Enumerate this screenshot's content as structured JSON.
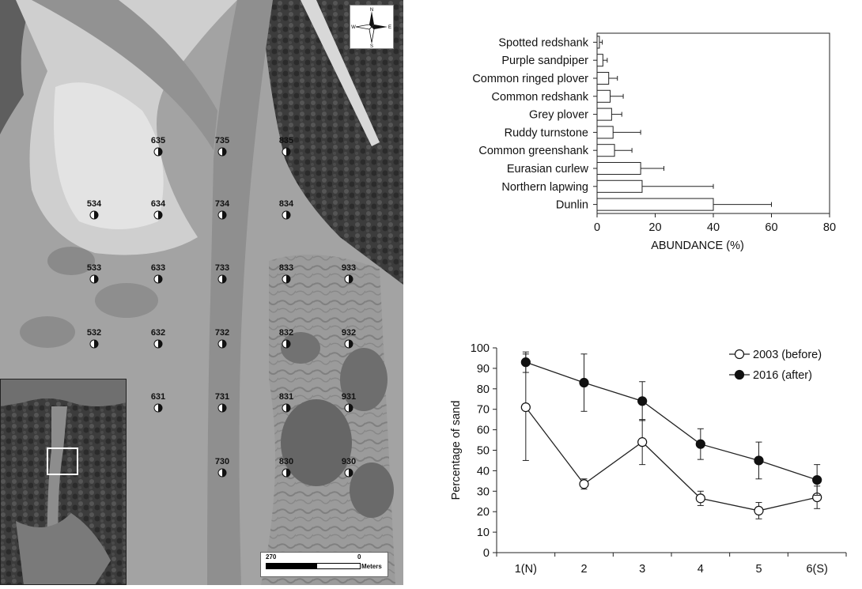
{
  "map": {
    "scale": {
      "left_label": "270",
      "right_label": "0",
      "unit": "Meters"
    },
    "compass": {
      "n": "N",
      "s": "S",
      "e": "E",
      "w": "W"
    },
    "stations": [
      {
        "id": "635",
        "col": 1,
        "row": 0
      },
      {
        "id": "735",
        "col": 2,
        "row": 0
      },
      {
        "id": "835",
        "col": 3,
        "row": 0
      },
      {
        "id": "534",
        "col": 0,
        "row": 1
      },
      {
        "id": "634",
        "col": 1,
        "row": 1
      },
      {
        "id": "734",
        "col": 2,
        "row": 1
      },
      {
        "id": "834",
        "col": 3,
        "row": 1
      },
      {
        "id": "533",
        "col": 0,
        "row": 2
      },
      {
        "id": "633",
        "col": 1,
        "row": 2
      },
      {
        "id": "733",
        "col": 2,
        "row": 2
      },
      {
        "id": "833",
        "col": 3,
        "row": 2
      },
      {
        "id": "933",
        "col": 4,
        "row": 2
      },
      {
        "id": "532",
        "col": 0,
        "row": 3
      },
      {
        "id": "632",
        "col": 1,
        "row": 3
      },
      {
        "id": "732",
        "col": 2,
        "row": 3
      },
      {
        "id": "832",
        "col": 3,
        "row": 3
      },
      {
        "id": "932",
        "col": 4,
        "row": 3
      },
      {
        "id": "631",
        "col": 1,
        "row": 4
      },
      {
        "id": "731",
        "col": 2,
        "row": 4
      },
      {
        "id": "831",
        "col": 3,
        "row": 4
      },
      {
        "id": "931",
        "col": 4,
        "row": 4
      },
      {
        "id": "730",
        "col": 2,
        "row": 5
      },
      {
        "id": "830",
        "col": 3,
        "row": 5
      },
      {
        "id": "930",
        "col": 4,
        "row": 5
      }
    ]
  },
  "chart_data": [
    {
      "type": "bar",
      "orientation": "horizontal",
      "categories": [
        "Spotted redshank",
        "Purple sandpiper",
        "Common ringed plover",
        "Common redshank",
        "Grey plover",
        "Ruddy turnstone",
        "Common greenshank",
        "Eurasian curlew",
        "Northern lapwing",
        "Dunlin"
      ],
      "values": [
        0.8,
        2,
        4,
        4.5,
        5,
        5.5,
        6,
        15,
        15.5,
        40
      ],
      "errors": [
        1,
        1.5,
        3,
        4.5,
        3.5,
        9.5,
        6,
        8,
        24.5,
        20
      ],
      "xlabel": "ABUNDANCE (%)",
      "ylabel": "",
      "xlim": [
        0,
        80
      ],
      "xticks": [
        "0",
        "20",
        "40",
        "60",
        "80"
      ],
      "grid": false
    },
    {
      "type": "line",
      "categories": [
        "1(N)",
        "2",
        "3",
        "4",
        "5",
        "6(S)"
      ],
      "series": [
        {
          "name": "2003 (before)",
          "values": [
            71,
            33.5,
            54,
            26.5,
            20.5,
            27
          ],
          "errors": [
            26,
            2.5,
            11,
            3.5,
            4,
            5.5
          ],
          "marker": "open-circle"
        },
        {
          "name": "2016 (after)",
          "values": [
            93,
            83,
            74,
            53,
            45,
            35.5
          ],
          "errors": [
            5,
            14,
            9.5,
            7.5,
            9,
            7.5
          ],
          "marker": "filled-circle"
        }
      ],
      "xlabel": "",
      "ylabel": "Percentage of sand",
      "ylim": [
        0,
        100
      ],
      "yticks": [
        "0",
        "10",
        "20",
        "30",
        "40",
        "50",
        "60",
        "70",
        "80",
        "90",
        "100"
      ],
      "legend": "top-right",
      "grid": false
    }
  ]
}
